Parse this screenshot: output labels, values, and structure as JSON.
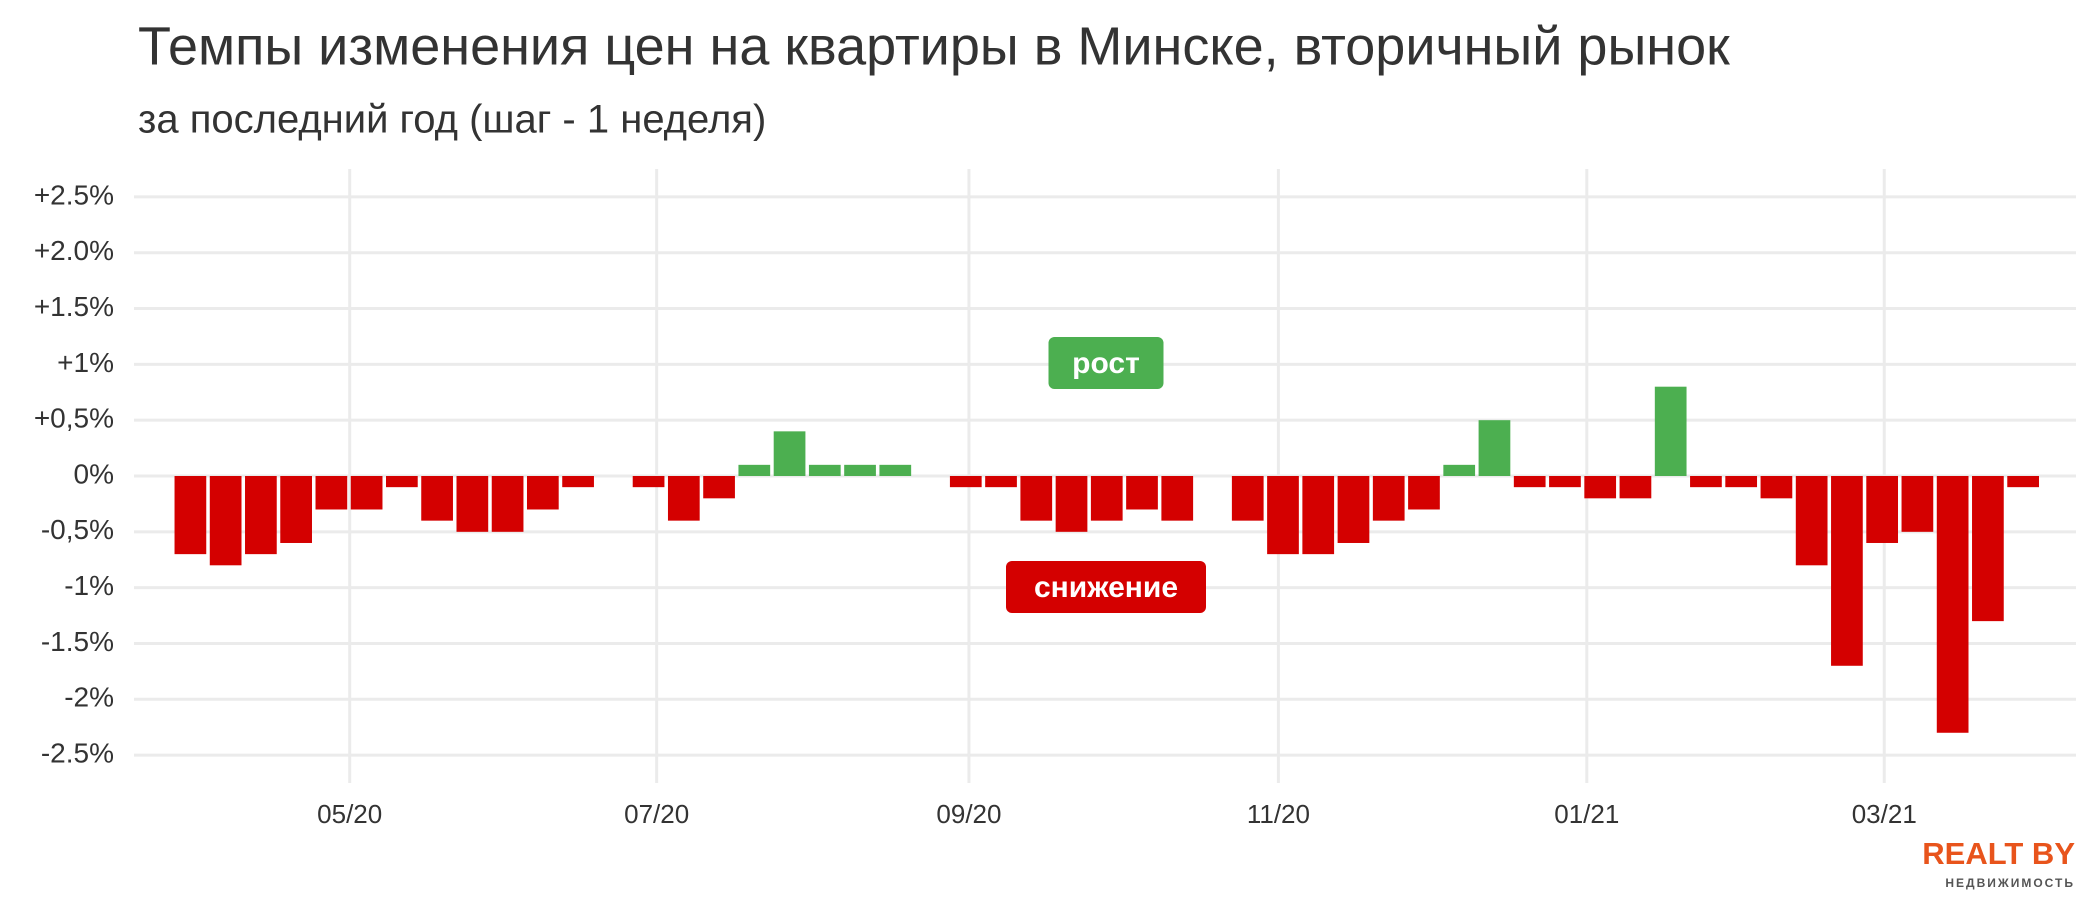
{
  "chart_data": {
    "type": "bar",
    "title": "Темпы изменения цен на квартиры в Минске, вторичный рынок",
    "subtitle": "за последний год (шаг - 1 неделя)",
    "categories": [
      null,
      null,
      null,
      null,
      null,
      null,
      null,
      null,
      null,
      null,
      null,
      null,
      null,
      null,
      null,
      null,
      null,
      null,
      null,
      null,
      null,
      null,
      null,
      null,
      null,
      null,
      null,
      null,
      null,
      null,
      null,
      null,
      null,
      null,
      null,
      null,
      null,
      null,
      null,
      null,
      null,
      null,
      null,
      null,
      null,
      null,
      null,
      null,
      null,
      null,
      null,
      null,
      null
    ],
    "values": [
      -0.7,
      -0.8,
      -0.7,
      -0.6,
      -0.3,
      -0.3,
      -0.1,
      -0.4,
      -0.5,
      -0.5,
      -0.3,
      -0.1,
      null,
      -0.1,
      -0.4,
      -0.2,
      0.1,
      0.4,
      0.1,
      0.1,
      0.1,
      null,
      -0.1,
      -0.1,
      -0.4,
      -0.5,
      -0.4,
      -0.3,
      -0.4,
      null,
      -0.4,
      -0.7,
      -0.7,
      -0.6,
      -0.4,
      -0.3,
      0.1,
      0.5,
      -0.1,
      -0.1,
      -0.2,
      -0.2,
      0.8,
      -0.1,
      -0.1,
      -0.2,
      -0.8,
      -1.7,
      -0.6,
      -0.5,
      -2.3,
      -1.3,
      -0.1
    ],
    "positive_color": "#4caf50",
    "negative_color": "#d40000",
    "xlim": [
      -1.6,
      53.5
    ],
    "xticks": [
      {
        "value": 4.52,
        "label": "05/20"
      },
      {
        "value": 13.23,
        "label": "07/20"
      },
      {
        "value": 22.09,
        "label": "09/20"
      },
      {
        "value": 30.87,
        "label": "11/20"
      },
      {
        "value": 39.62,
        "label": "01/21"
      },
      {
        "value": 48.06,
        "label": "03/21"
      }
    ],
    "ylim": [
      -2.75,
      2.75
    ],
    "yticks": [
      {
        "value": 2.5,
        "label": "+2.5%"
      },
      {
        "value": 2.0,
        "label": "+2.0%"
      },
      {
        "value": 1.5,
        "label": "+1.5%"
      },
      {
        "value": 1,
        "label": "+1%"
      },
      {
        "value": 0.5,
        "label": "+0,5%"
      },
      {
        "value": 0,
        "label": "0%"
      },
      {
        "value": -0.5,
        "label": "-0,5%"
      },
      {
        "value": -1,
        "label": "-1%"
      },
      {
        "value": -1.5,
        "label": "-1.5%"
      },
      {
        "value": -2,
        "label": "-2%"
      },
      {
        "value": -2.5,
        "label": "-2.5%"
      }
    ],
    "grid": true,
    "annotations": [
      {
        "text": "рост",
        "color": "#4caf50"
      },
      {
        "text": "снижение",
        "color": "#d40000"
      }
    ],
    "logo": {
      "text": "REALT BY",
      "subtext": "НЕДВИЖИМОСТЬ",
      "color": "#e8541c"
    }
  }
}
